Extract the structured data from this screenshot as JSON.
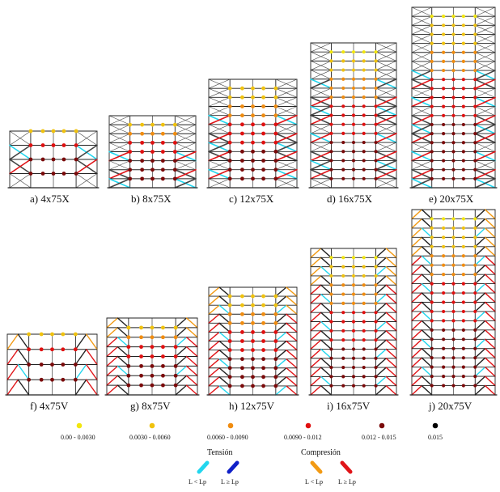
{
  "figure": {
    "panels": [
      {
        "id": "a",
        "caption": "a) 4x75X",
        "brace": "X",
        "stories": 4
      },
      {
        "id": "b",
        "caption": "b) 8x75X",
        "brace": "X",
        "stories": 8
      },
      {
        "id": "c",
        "caption": "c) 12x75X",
        "brace": "X",
        "stories": 12
      },
      {
        "id": "d",
        "caption": "d) 16x75X",
        "brace": "X",
        "stories": 16
      },
      {
        "id": "e",
        "caption": "e) 20x75X",
        "brace": "X",
        "stories": 20
      },
      {
        "id": "f",
        "caption": "f) 4x75V",
        "brace": "V",
        "stories": 4
      },
      {
        "id": "g",
        "caption": "g) 8x75V",
        "brace": "V",
        "stories": 8
      },
      {
        "id": "h",
        "caption": "h) 12x75V",
        "brace": "V",
        "stories": 12
      },
      {
        "id": "i",
        "caption": "i) 16x75V",
        "brace": "V",
        "stories": 16
      },
      {
        "id": "j",
        "caption": "j) 20x75V",
        "brace": "V",
        "stories": 20
      }
    ]
  },
  "legend": {
    "ranges": [
      {
        "label": "0.00 - 0.0030",
        "color": "#f2e60e"
      },
      {
        "label": "0.0030 - 0.0060",
        "color": "#f0c20e"
      },
      {
        "label": "0.0060 - 0.0090",
        "color": "#f08c10"
      },
      {
        "label": "0.0090 - 0.012",
        "color": "#e01010"
      },
      {
        "label": "0.012 - 0.015",
        "color": "#7a0a0a"
      },
      {
        "label": "0.015",
        "color": "#000000"
      }
    ],
    "tension_title": "Tensión",
    "compression_title": "Compresión",
    "braces": [
      {
        "label": "L < Lp",
        "color": "#22d6ee"
      },
      {
        "label": "L ≥ Lp",
        "color": "#1020c8"
      },
      {
        "label": "L < Lp",
        "color": "#f29a14"
      },
      {
        "label": "L ≥ Lp",
        "color": "#e01418"
      }
    ]
  }
}
